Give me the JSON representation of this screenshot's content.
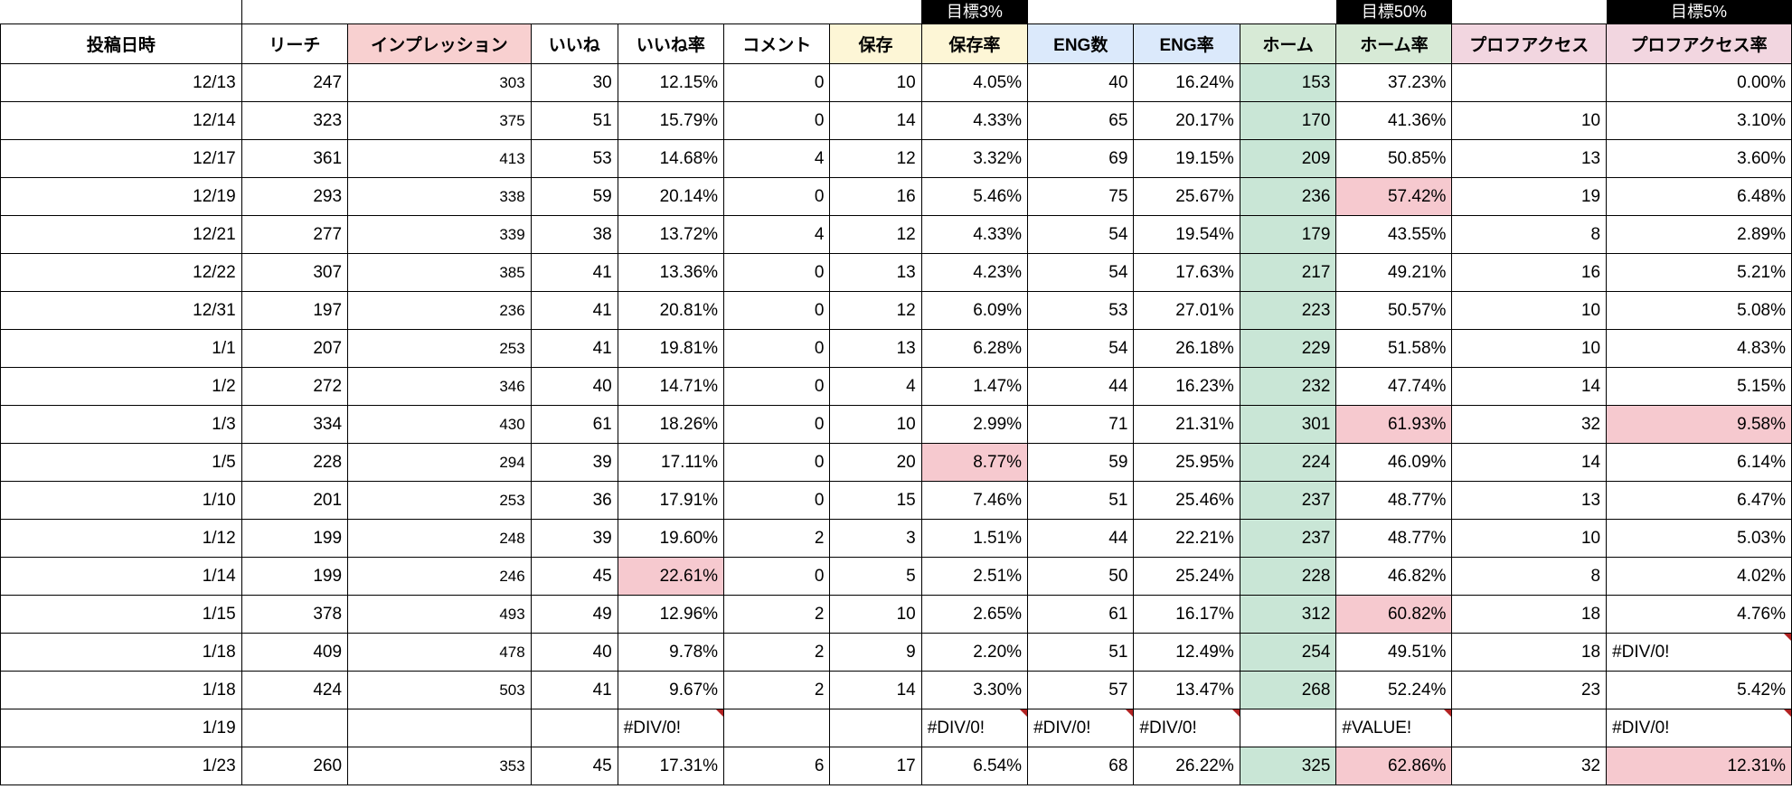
{
  "targets": {
    "save_rate": "目標3%",
    "home_rate": "目標50%",
    "profile_rate": "目標5%"
  },
  "headers": {
    "date": "投稿日時",
    "reach": "リーチ",
    "impression": "インプレッション",
    "like": "いいね",
    "like_rate": "いいね率",
    "comment": "コメント",
    "save": "保存",
    "save_rate": "保存率",
    "eng_n": "ENG数",
    "eng_r": "ENG率",
    "home": "ホーム",
    "home_rate": "ホーム率",
    "prof": "プロフアクセス",
    "prof_rate": "プロフアクセス率"
  },
  "header_colors": {
    "date": "hbg-white",
    "reach": "hbg-white",
    "impression": "hbg-pink",
    "like": "hbg-white",
    "like_rate": "hbg-white",
    "comment": "hbg-white",
    "save": "hbg-yellow",
    "save_rate": "hbg-yellow",
    "eng_n": "hbg-blue",
    "eng_r": "hbg-blue",
    "home": "hbg-green",
    "home_rate": "hbg-green",
    "prof": "hbg-rose",
    "prof_rate": "hbg-rose"
  },
  "highlight_colors": {
    "home_col": "cell-green",
    "pink": "cell-pink"
  },
  "rows": [
    {
      "date": "12/13",
      "reach": "247",
      "imp": "303",
      "like": "30",
      "liker": "12.15%",
      "cmt": "0",
      "save": "10",
      "saver": "4.05%",
      "engn": "40",
      "engr": "16.24%",
      "home": "153",
      "homer": "37.23%",
      "prof": "",
      "profr": "0.00%"
    },
    {
      "date": "12/14",
      "reach": "323",
      "imp": "375",
      "like": "51",
      "liker": "15.79%",
      "cmt": "0",
      "save": "14",
      "saver": "4.33%",
      "engn": "65",
      "engr": "20.17%",
      "home": "170",
      "homer": "41.36%",
      "prof": "10",
      "profr": "3.10%"
    },
    {
      "date": "12/17",
      "reach": "361",
      "imp": "413",
      "like": "53",
      "liker": "14.68%",
      "cmt": "4",
      "save": "12",
      "saver": "3.32%",
      "engn": "69",
      "engr": "19.15%",
      "home": "209",
      "homer": "50.85%",
      "prof": "13",
      "profr": "3.60%"
    },
    {
      "date": "12/19",
      "reach": "293",
      "imp": "338",
      "like": "59",
      "liker": "20.14%",
      "cmt": "0",
      "save": "16",
      "saver": "5.46%",
      "engn": "75",
      "engr": "25.67%",
      "home": "236",
      "homer": "57.42%",
      "homer_hl": true,
      "prof": "19",
      "profr": "6.48%"
    },
    {
      "date": "12/21",
      "reach": "277",
      "imp": "339",
      "like": "38",
      "liker": "13.72%",
      "cmt": "4",
      "save": "12",
      "saver": "4.33%",
      "engn": "54",
      "engr": "19.54%",
      "home": "179",
      "homer": "43.55%",
      "prof": "8",
      "profr": "2.89%"
    },
    {
      "date": "12/22",
      "reach": "307",
      "imp": "385",
      "like": "41",
      "liker": "13.36%",
      "cmt": "0",
      "save": "13",
      "saver": "4.23%",
      "engn": "54",
      "engr": "17.63%",
      "home": "217",
      "homer": "49.21%",
      "prof": "16",
      "profr": "5.21%"
    },
    {
      "date": "12/31",
      "reach": "197",
      "imp": "236",
      "like": "41",
      "liker": "20.81%",
      "cmt": "0",
      "save": "12",
      "saver": "6.09%",
      "engn": "53",
      "engr": "27.01%",
      "home": "223",
      "homer": "50.57%",
      "prof": "10",
      "profr": "5.08%"
    },
    {
      "date": "1/1",
      "reach": "207",
      "imp": "253",
      "like": "41",
      "liker": "19.81%",
      "cmt": "0",
      "save": "13",
      "saver": "6.28%",
      "engn": "54",
      "engr": "26.18%",
      "home": "229",
      "homer": "51.58%",
      "prof": "10",
      "profr": "4.83%"
    },
    {
      "date": "1/2",
      "reach": "272",
      "imp": "346",
      "like": "40",
      "liker": "14.71%",
      "cmt": "0",
      "save": "4",
      "saver": "1.47%",
      "engn": "44",
      "engr": "16.23%",
      "home": "232",
      "homer": "47.74%",
      "prof": "14",
      "profr": "5.15%"
    },
    {
      "date": "1/3",
      "reach": "334",
      "imp": "430",
      "like": "61",
      "liker": "18.26%",
      "cmt": "0",
      "save": "10",
      "saver": "2.99%",
      "engn": "71",
      "engr": "21.31%",
      "home": "301",
      "homer": "61.93%",
      "homer_hl": true,
      "prof": "32",
      "profr": "9.58%",
      "profr_hl": true
    },
    {
      "date": "1/5",
      "reach": "228",
      "imp": "294",
      "like": "39",
      "liker": "17.11%",
      "cmt": "0",
      "save": "20",
      "saver": "8.77%",
      "saver_hl": true,
      "engn": "59",
      "engr": "25.95%",
      "home": "224",
      "homer": "46.09%",
      "prof": "14",
      "profr": "6.14%"
    },
    {
      "date": "1/10",
      "reach": "201",
      "imp": "253",
      "like": "36",
      "liker": "17.91%",
      "cmt": "0",
      "save": "15",
      "saver": "7.46%",
      "engn": "51",
      "engr": "25.46%",
      "home": "237",
      "homer": "48.77%",
      "prof": "13",
      "profr": "6.47%"
    },
    {
      "date": "1/12",
      "reach": "199",
      "imp": "248",
      "like": "39",
      "liker": "19.60%",
      "cmt": "2",
      "save": "3",
      "saver": "1.51%",
      "engn": "44",
      "engr": "22.21%",
      "home": "237",
      "homer": "48.77%",
      "prof": "10",
      "profr": "5.03%"
    },
    {
      "date": "1/14",
      "reach": "199",
      "imp": "246",
      "like": "45",
      "liker": "22.61%",
      "liker_hl": true,
      "cmt": "0",
      "save": "5",
      "saver": "2.51%",
      "engn": "50",
      "engr": "25.24%",
      "home": "228",
      "homer": "46.82%",
      "prof": "8",
      "profr": "4.02%"
    },
    {
      "date": "1/15",
      "reach": "378",
      "imp": "493",
      "like": "49",
      "liker": "12.96%",
      "cmt": "2",
      "save": "10",
      "saver": "2.65%",
      "engn": "61",
      "engr": "16.17%",
      "home": "312",
      "homer": "60.82%",
      "homer_hl": true,
      "prof": "18",
      "profr": "4.76%"
    },
    {
      "date": "1/18",
      "reach": "409",
      "imp": "478",
      "like": "40",
      "liker": "9.78%",
      "cmt": "2",
      "save": "9",
      "saver": "2.20%",
      "engn": "51",
      "engr": "12.49%",
      "home": "254",
      "homer": "49.51%",
      "prof": "18",
      "profr": "#DIV/0!",
      "profr_err": true
    },
    {
      "date": "1/18",
      "reach": "424",
      "imp": "503",
      "like": "41",
      "liker": "9.67%",
      "cmt": "2",
      "save": "14",
      "saver": "3.30%",
      "engn": "57",
      "engr": "13.47%",
      "home": "268",
      "homer": "52.24%",
      "prof": "23",
      "profr": "5.42%"
    },
    {
      "date": "1/19",
      "reach": "",
      "imp": "",
      "like": "",
      "liker": "#DIV/0!",
      "liker_err": true,
      "cmt": "",
      "save": "",
      "saver": "#DIV/0!",
      "saver_err": true,
      "engn": "#DIV/0!",
      "engn_err": true,
      "engr": "#DIV/0!",
      "engr_err": true,
      "home": "",
      "no_home_hl": true,
      "homer": "#VALUE!",
      "homer_err": true,
      "homer_left": true,
      "prof": "",
      "profr": "#DIV/0!",
      "profr_err": true
    },
    {
      "date": "1/23",
      "reach": "260",
      "imp": "353",
      "like": "45",
      "liker": "17.31%",
      "cmt": "6",
      "save": "17",
      "saver": "6.54%",
      "engn": "68",
      "engr": "26.22%",
      "home": "325",
      "homer": "62.86%",
      "homer_hl": true,
      "prof": "32",
      "profr": "12.31%",
      "profr_hl": true
    }
  ]
}
